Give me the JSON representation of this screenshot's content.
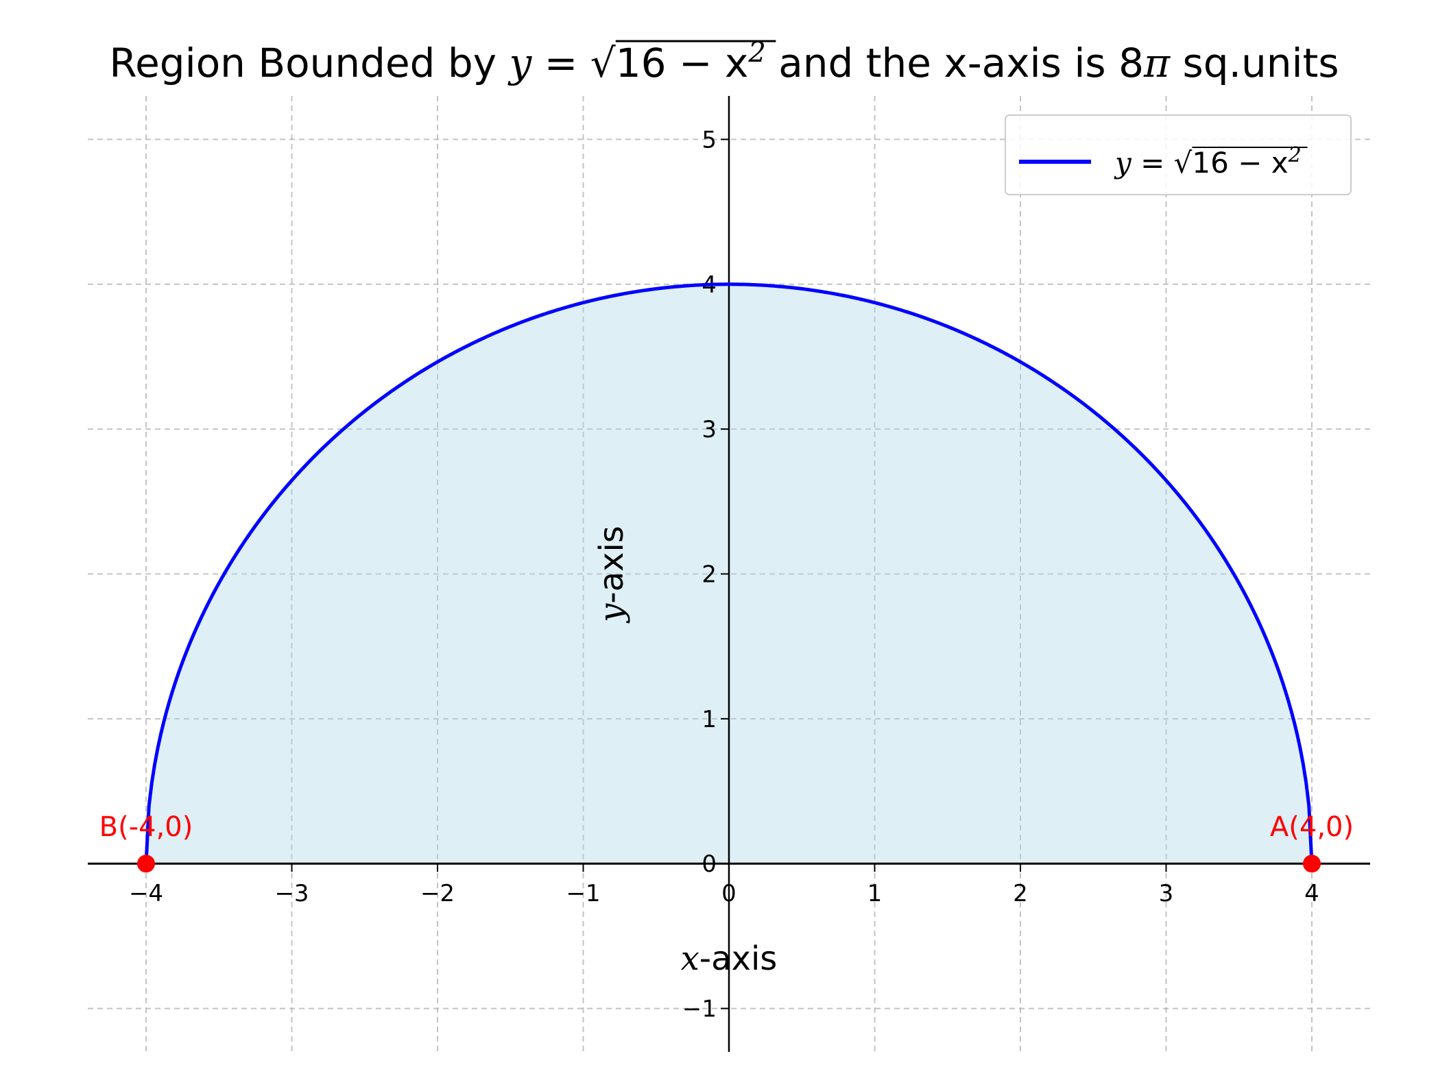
{
  "title": {
    "prefix": "Region Bounded by ",
    "equation_var": "y",
    "equation_eq": " = ",
    "equation_rad": "16 − x",
    "equation_exp": "2",
    "suffix_pre": " and the x-axis is 8",
    "suffix_pi": "π",
    "suffix_post": " sq.units"
  },
  "chart_data": {
    "type": "area",
    "title": "Region Bounded by y = √(16 − x²) and the x-axis is 8π sq.units",
    "xlabel_var": "x",
    "xlabel_rest": "-axis",
    "ylabel_var": "y",
    "ylabel_rest": "-axis",
    "xlim": [
      -4.4,
      4.4
    ],
    "ylim": [
      -1.3,
      5.3
    ],
    "xticks": [
      -4,
      -3,
      -2,
      -1,
      0,
      1,
      2,
      3,
      4
    ],
    "xtick_labels": [
      "−4",
      "−3",
      "−2",
      "−1",
      "0",
      "1",
      "2",
      "3",
      "4"
    ],
    "yticks": [
      -1,
      0,
      1,
      2,
      3,
      4,
      5
    ],
    "ytick_labels": [
      "−1",
      "0",
      "1",
      "2",
      "3",
      "4",
      "5"
    ],
    "grid": true,
    "legend_position": "top-right",
    "series": [
      {
        "name": "y = √(16 − x²)",
        "function": "sqrt(16 - x^2)",
        "domain": [
          -4,
          4
        ],
        "color": "#0000ff",
        "fill_color": "#add8e6",
        "fill_opacity": 0.4
      }
    ],
    "points": [
      {
        "label": "A(4,0)",
        "x": 4,
        "y": 0,
        "color": "#ff0000"
      },
      {
        "label": "B(-4,0)",
        "x": -4,
        "y": 0,
        "color": "#ff0000"
      }
    ],
    "legend": {
      "var": "y",
      "eq": " = ",
      "rad": "16 − x",
      "exp": "2"
    }
  }
}
